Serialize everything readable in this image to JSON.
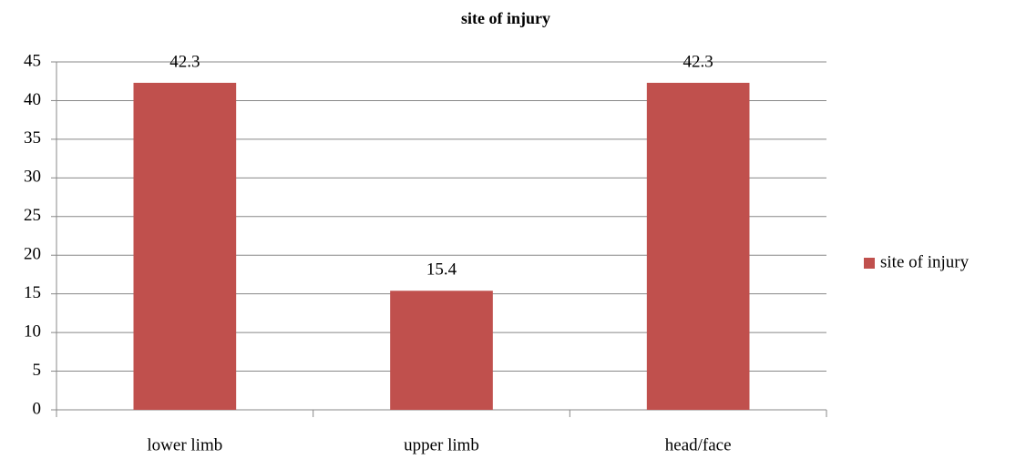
{
  "chart_data": {
    "type": "bar",
    "title": "site of injury",
    "categories": [
      "lower limb",
      "upper limb",
      "head/face"
    ],
    "series": [
      {
        "name": "site of injury",
        "color": "#c0504d",
        "values": [
          42.3,
          15.4,
          42.3
        ]
      }
    ],
    "ylim": [
      0,
      45
    ],
    "yticks": [
      0,
      5,
      10,
      15,
      20,
      25,
      30,
      35,
      40,
      45
    ],
    "grid": true,
    "legend": "right"
  }
}
